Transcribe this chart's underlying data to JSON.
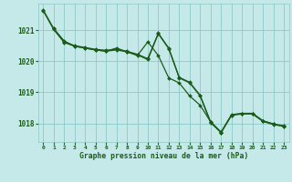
{
  "background_color": "#c5e8e8",
  "grid_color": "#8dc8c8",
  "line_color": "#1a5c1a",
  "text_color": "#1a5c1a",
  "xlabel": "Graphe pression niveau de la mer (hPa)",
  "xlim": [
    -0.5,
    23.5
  ],
  "ylim": [
    1017.4,
    1021.85
  ],
  "yticks": [
    1018,
    1019,
    1020,
    1021
  ],
  "xticks": [
    0,
    1,
    2,
    3,
    4,
    5,
    6,
    7,
    8,
    9,
    10,
    11,
    12,
    13,
    14,
    15,
    16,
    17,
    18,
    19,
    20,
    21,
    22,
    23
  ],
  "series1": {
    "x": [
      0,
      1,
      2,
      3,
      4,
      5,
      6,
      7,
      8,
      9,
      10,
      11,
      12,
      13,
      14,
      15,
      16,
      17,
      18,
      19,
      20,
      21,
      22,
      23
    ],
    "y": [
      1021.65,
      1021.05,
      1020.62,
      1020.5,
      1020.44,
      1020.38,
      1020.35,
      1020.38,
      1020.32,
      1020.22,
      1020.08,
      1020.9,
      1020.42,
      1019.48,
      1019.32,
      1018.9,
      1018.05,
      1017.72,
      1018.28,
      1018.32,
      1018.32,
      1018.08,
      1017.98,
      1017.92
    ]
  },
  "series2": {
    "x": [
      0,
      1,
      2,
      3,
      4,
      5,
      6,
      7,
      8,
      9,
      10,
      11,
      12,
      13,
      14,
      15,
      16,
      17,
      18,
      19,
      20,
      21,
      22,
      23
    ],
    "y": [
      1021.62,
      1021.02,
      1020.6,
      1020.48,
      1020.42,
      1020.36,
      1020.32,
      1020.36,
      1020.3,
      1020.2,
      1020.05,
      1020.88,
      1020.4,
      1019.46,
      1019.3,
      1018.88,
      1018.02,
      1017.7,
      1018.26,
      1018.3,
      1018.3,
      1018.06,
      1017.96,
      1017.9
    ]
  },
  "series3": {
    "x": [
      1,
      2,
      3,
      4,
      5,
      6,
      7,
      8,
      9,
      10,
      11,
      12,
      13,
      14,
      15,
      16,
      17,
      18,
      19,
      20,
      21,
      22,
      23
    ],
    "y": [
      1021.05,
      1020.65,
      1020.48,
      1020.42,
      1020.36,
      1020.32,
      1020.42,
      1020.3,
      1020.18,
      1020.62,
      1020.18,
      1019.46,
      1019.3,
      1018.88,
      1018.58,
      1018.05,
      1017.7,
      1018.26,
      1018.32,
      1018.32,
      1018.08,
      1017.98,
      1017.9
    ]
  }
}
